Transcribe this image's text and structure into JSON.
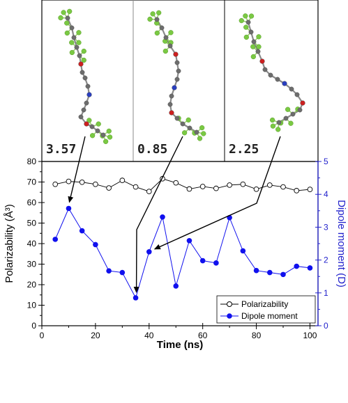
{
  "chart_data": {
    "type": "line",
    "xlabel": "Time (ns)",
    "ylabel_left": "Polarizability (Å³)",
    "ylabel_right": "Dipole moment (D)",
    "xlim": [
      0,
      103
    ],
    "ylim_left": [
      0,
      80
    ],
    "ylim_right": [
      0,
      5
    ],
    "x_ticks": [
      0,
      20,
      40,
      60,
      80,
      100
    ],
    "y_ticks_left": [
      0,
      10,
      20,
      30,
      40,
      50,
      60,
      70,
      80
    ],
    "y_ticks_right": [
      0,
      1,
      2,
      3,
      4,
      5
    ],
    "legend_position": "bottom-right",
    "colors": {
      "polarizability": "#000000",
      "dipole": "#1010ee",
      "right_axis": "#2222cc"
    },
    "series": [
      {
        "name": "Polarizability",
        "axis": "left",
        "marker": "open-circle",
        "x": [
          5,
          10,
          15,
          20,
          25,
          30,
          35,
          40,
          45,
          50,
          55,
          60,
          65,
          70,
          75,
          80,
          85,
          90,
          95,
          100
        ],
        "values": [
          68.9,
          70.3,
          69.9,
          68.9,
          67.1,
          70.8,
          67.6,
          65.4,
          71.6,
          69.6,
          66.6,
          67.8,
          66.9,
          68.5,
          68.9,
          66.5,
          68.5,
          67.6,
          65.8,
          66.4
        ]
      },
      {
        "name": "Dipole moment",
        "axis": "right",
        "marker": "filled-circle",
        "x": [
          5,
          10,
          15,
          20,
          25,
          30,
          35,
          40,
          45,
          50,
          55,
          60,
          65,
          70,
          75,
          80,
          85,
          90,
          95,
          100
        ],
        "values": [
          2.63,
          3.57,
          2.89,
          2.47,
          1.67,
          1.62,
          0.85,
          2.25,
          3.31,
          1.21,
          2.59,
          1.98,
          1.91,
          3.29,
          2.28,
          1.68,
          1.62,
          1.56,
          1.81,
          1.76
        ]
      }
    ],
    "annotations": [
      {
        "label": "3.57",
        "points_to_x": 10,
        "points_to_value": 3.57
      },
      {
        "label": "0.85",
        "points_to_x": 35,
        "points_to_value": 0.85
      },
      {
        "label": "2.25",
        "points_to_x": 40,
        "points_to_value": 2.25
      }
    ]
  },
  "molecule_colors": {
    "carbon": "#6d6d6d",
    "fluorine": "#7ac943",
    "oxygen": "#cc2020",
    "nitrogen": "#2a3fbf",
    "hydrogen": "#e8e8e8"
  }
}
